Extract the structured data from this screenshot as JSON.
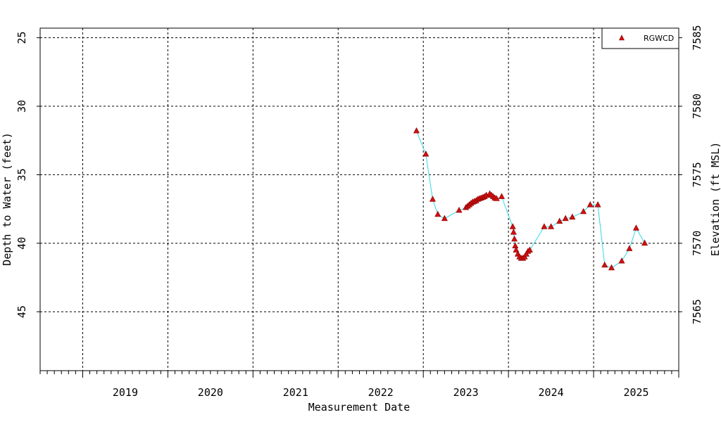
{
  "chart_data": {
    "type": "scatter",
    "xlabel": "Measurement Date",
    "ylabel": "Depth to Water (feet)",
    "y2label": "Elevation (ft MSL)",
    "x_range_years": [
      2018.5,
      2026.0
    ],
    "xtick_years": [
      "2019",
      "2020",
      "2021",
      "2022",
      "2023",
      "2024",
      "2025"
    ],
    "ylim_depth": [
      49.3,
      24.3
    ],
    "yticks_depth": [
      25,
      30,
      35,
      40,
      45
    ],
    "yticks_elevation": [
      7565,
      7570,
      7575,
      7580,
      7585
    ],
    "elevation_offset": 7610,
    "grid": true,
    "legend_position": "top-right",
    "colors": {
      "marker": "#d01010",
      "line": "#33d6e6",
      "grid": "#000000"
    },
    "series": [
      {
        "name": "RGWCD",
        "points": [
          [
            2022.92,
            31.8
          ],
          [
            2023.03,
            33.5
          ],
          [
            2023.11,
            36.8
          ],
          [
            2023.17,
            37.9
          ],
          [
            2023.25,
            38.2
          ],
          [
            2023.42,
            37.6
          ],
          [
            2023.5,
            37.4
          ],
          [
            2023.52,
            37.3
          ],
          [
            2023.54,
            37.2
          ],
          [
            2023.56,
            37.1
          ],
          [
            2023.58,
            37.0
          ],
          [
            2023.6,
            36.95
          ],
          [
            2023.62,
            36.9
          ],
          [
            2023.64,
            36.8
          ],
          [
            2023.66,
            36.75
          ],
          [
            2023.68,
            36.7
          ],
          [
            2023.7,
            36.65
          ],
          [
            2023.72,
            36.6
          ],
          [
            2023.74,
            36.5
          ],
          [
            2023.78,
            36.4
          ],
          [
            2023.8,
            36.5
          ],
          [
            2023.82,
            36.6
          ],
          [
            2023.84,
            36.7
          ],
          [
            2023.86,
            36.75
          ],
          [
            2023.92,
            36.6
          ],
          [
            2024.05,
            38.8
          ],
          [
            2024.06,
            39.2
          ],
          [
            2024.07,
            39.7
          ],
          [
            2024.08,
            40.2
          ],
          [
            2024.09,
            40.5
          ],
          [
            2024.11,
            40.8
          ],
          [
            2024.13,
            41.0
          ],
          [
            2024.15,
            41.1
          ],
          [
            2024.17,
            41.1
          ],
          [
            2024.19,
            41.0
          ],
          [
            2024.21,
            40.8
          ],
          [
            2024.23,
            40.6
          ],
          [
            2024.25,
            40.5
          ],
          [
            2024.42,
            38.8
          ],
          [
            2024.5,
            38.8
          ],
          [
            2024.6,
            38.4
          ],
          [
            2024.67,
            38.2
          ],
          [
            2024.75,
            38.1
          ],
          [
            2024.88,
            37.7
          ],
          [
            2024.96,
            37.2
          ],
          [
            2025.05,
            37.2
          ],
          [
            2025.13,
            41.6
          ],
          [
            2025.21,
            41.8
          ],
          [
            2025.33,
            41.3
          ],
          [
            2025.42,
            40.4
          ],
          [
            2025.5,
            38.9
          ],
          [
            2025.6,
            40.0
          ]
        ]
      }
    ]
  }
}
